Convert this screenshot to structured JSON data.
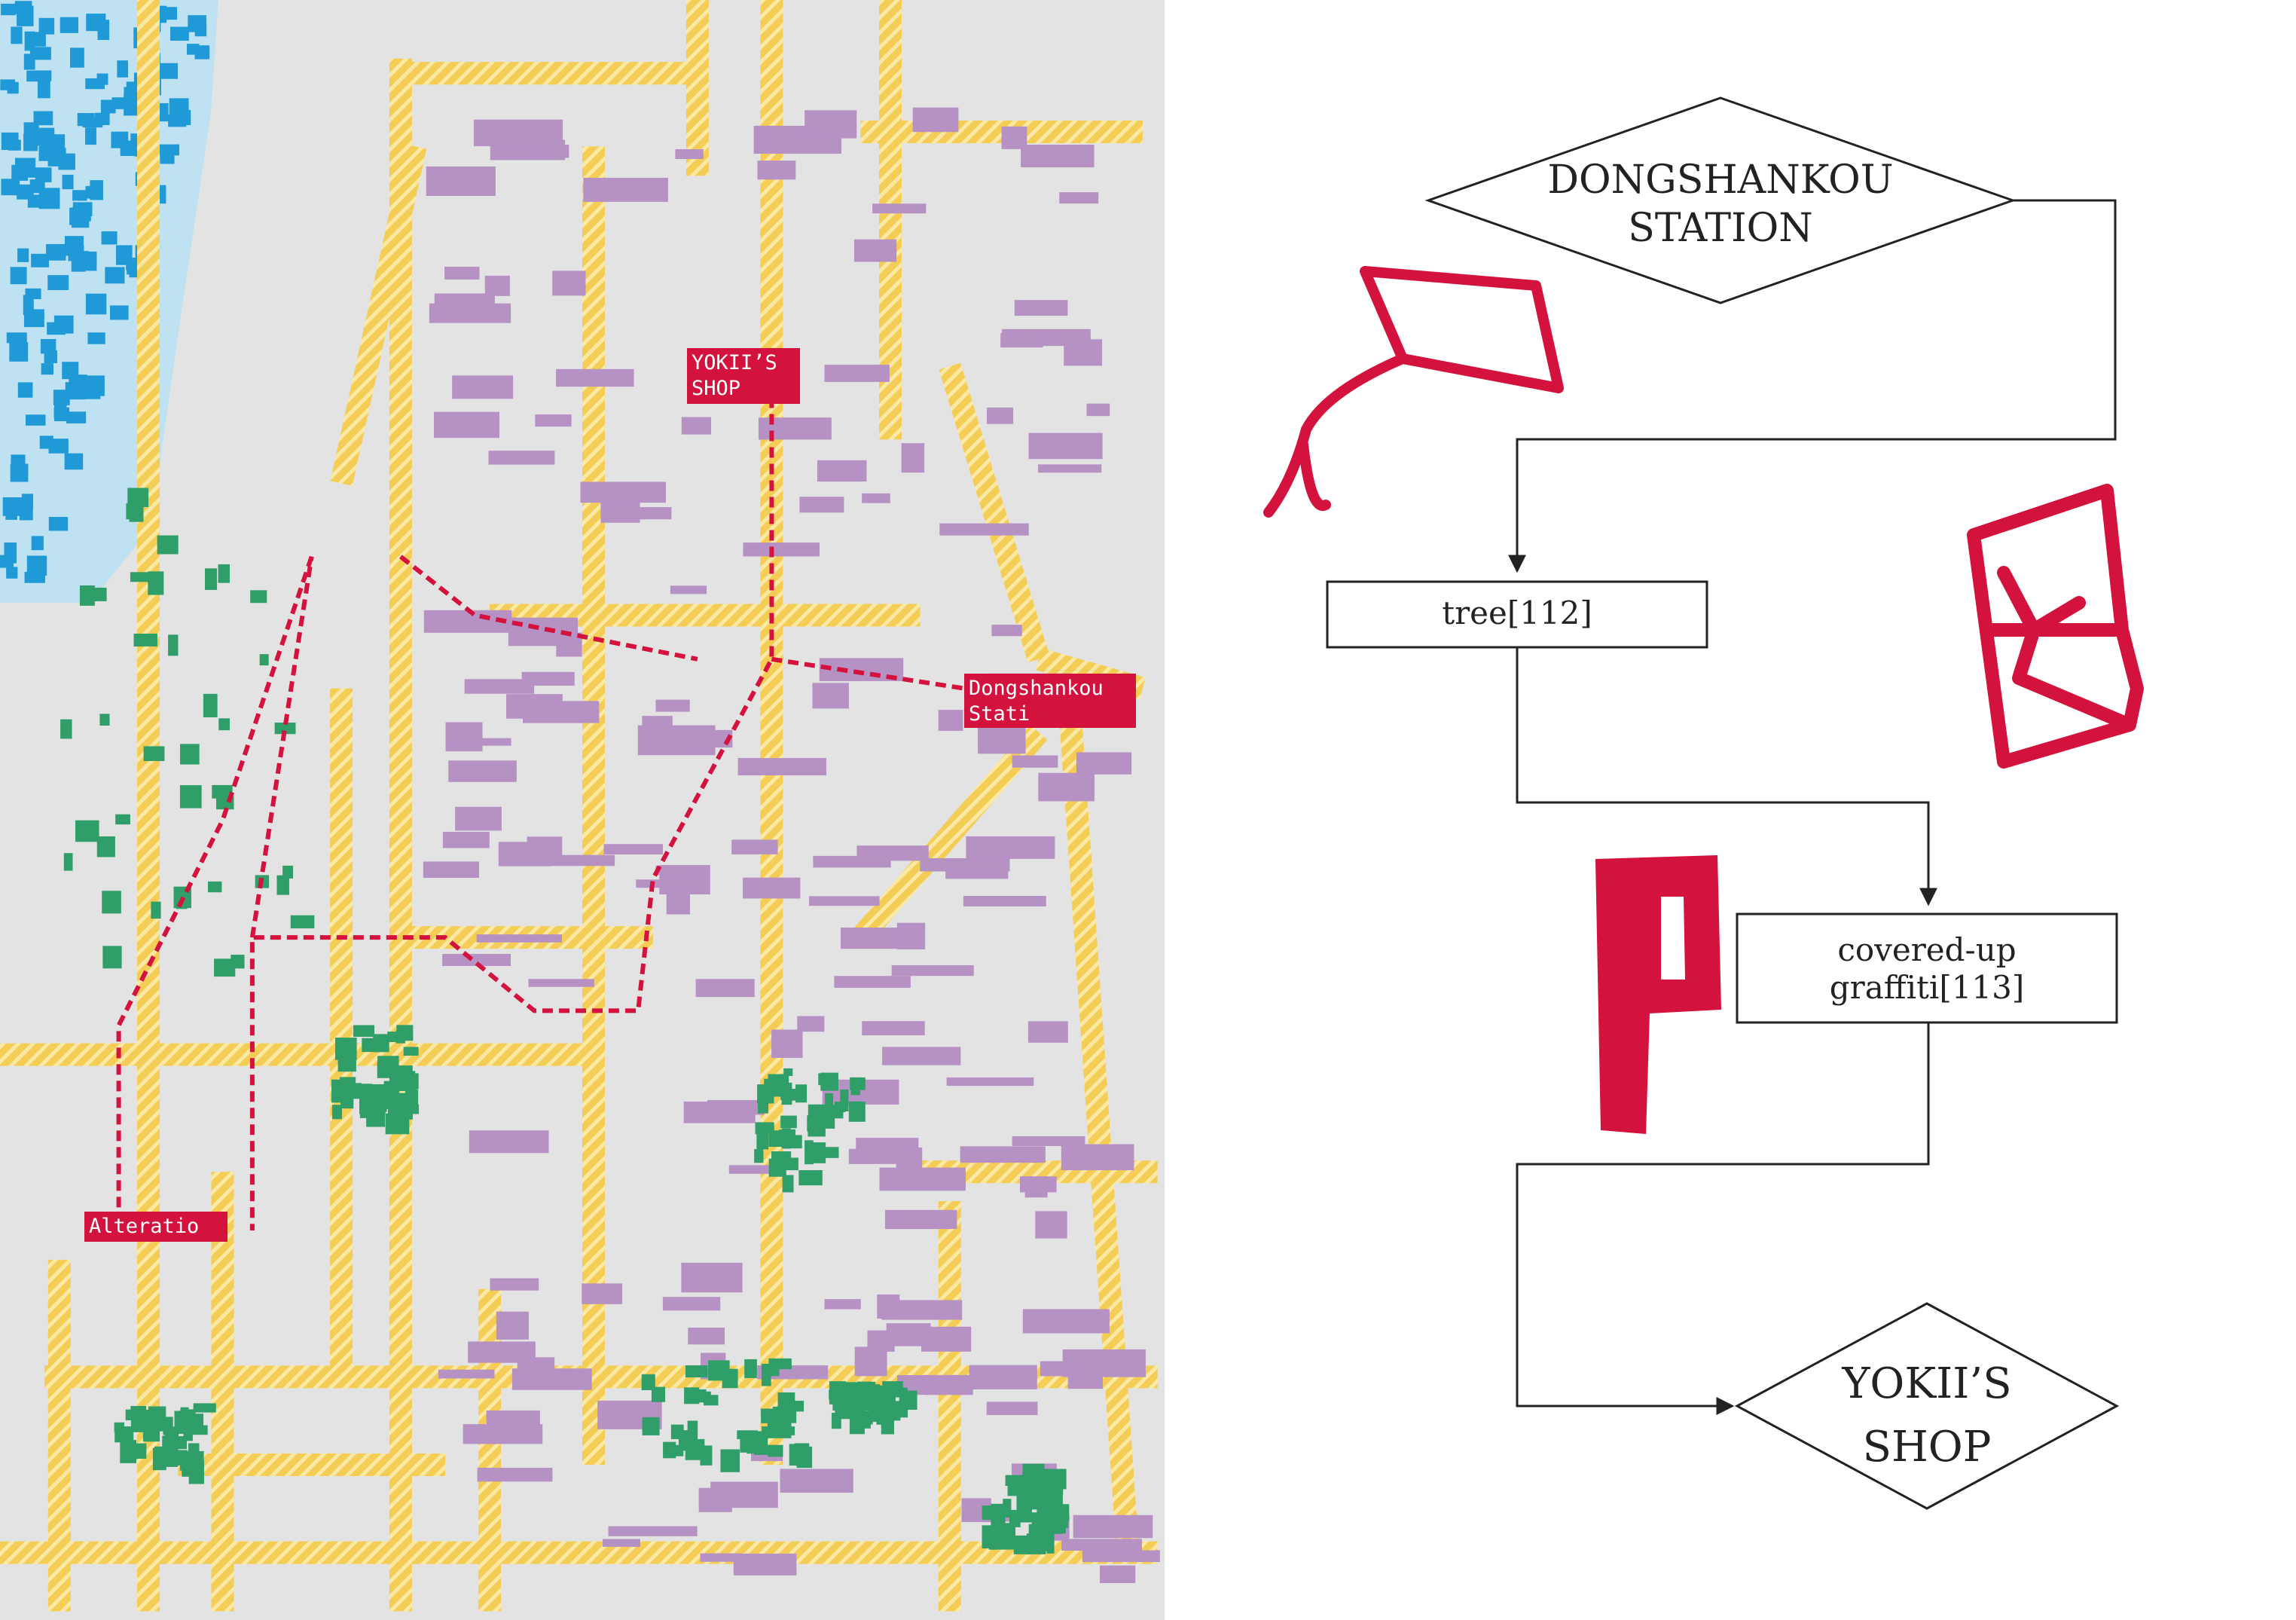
{
  "map": {
    "labels": [
      {
        "lines": [
          "YOKII’S",
          "SHOP"
        ]
      },
      {
        "lines": [
          "Dongshankou",
          "Stati"
        ]
      },
      {
        "lines": [
          "Alteratio"
        ]
      }
    ]
  },
  "flowchart": {
    "nodes": [
      {
        "lines": [
          "DONGSHANKOU",
          "STATION"
        ]
      },
      {
        "lines": [
          "tree[112]"
        ]
      },
      {
        "lines": [
          "covered-up",
          "graffiti[113]"
        ]
      },
      {
        "lines": [
          "YOKII’S",
          "SHOP"
        ]
      }
    ]
  }
}
